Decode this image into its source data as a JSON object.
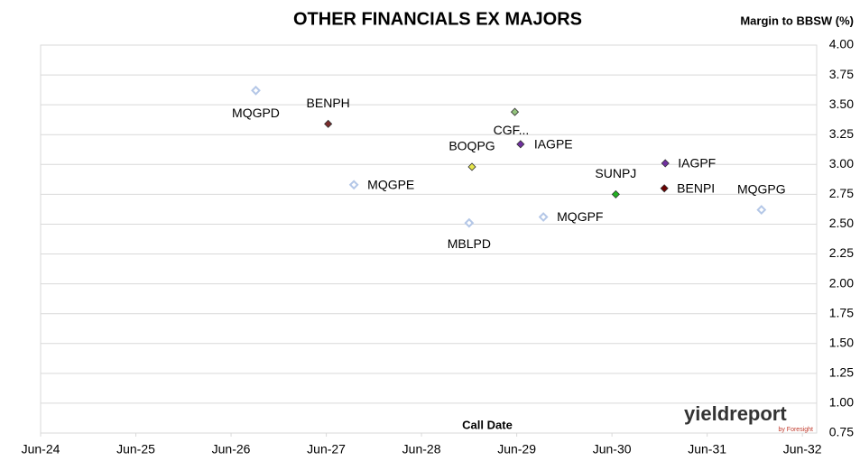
{
  "chart_data": {
    "type": "scatter",
    "title": "OTHER FINANCIALS EX MAJORS",
    "y_label": "Margin to BBSW (%)",
    "x_label": "Call Date",
    "logo": "yieldreport",
    "logo_sub": "by Foresight",
    "xlim": [
      2024.5,
      2032.65
    ],
    "ylim": [
      0.75,
      4.0
    ],
    "xticks": [
      {
        "value": 2024.5,
        "label": "Jun-24"
      },
      {
        "value": 2025.5,
        "label": "Jun-25"
      },
      {
        "value": 2026.5,
        "label": "Jun-26"
      },
      {
        "value": 2027.5,
        "label": "Jun-27"
      },
      {
        "value": 2028.5,
        "label": "Jun-28"
      },
      {
        "value": 2029.5,
        "label": "Jun-29"
      },
      {
        "value": 2030.5,
        "label": "Jun-30"
      },
      {
        "value": 2031.5,
        "label": "Jun-31"
      },
      {
        "value": 2032.5,
        "label": "Jun-32"
      }
    ],
    "yticks": [
      {
        "value": 0.75,
        "label": "0.75"
      },
      {
        "value": 1.0,
        "label": "1.00"
      },
      {
        "value": 1.25,
        "label": "1.25"
      },
      {
        "value": 1.5,
        "label": "1.50"
      },
      {
        "value": 1.75,
        "label": "1.75"
      },
      {
        "value": 2.0,
        "label": "2.00"
      },
      {
        "value": 2.25,
        "label": "2.25"
      },
      {
        "value": 2.5,
        "label": "2.50"
      },
      {
        "value": 2.75,
        "label": "2.75"
      },
      {
        "value": 3.0,
        "label": "3.00"
      },
      {
        "value": 3.25,
        "label": "3.25"
      },
      {
        "value": 3.5,
        "label": "3.50"
      },
      {
        "value": 3.75,
        "label": "3.75"
      },
      {
        "value": 4.0,
        "label": "4.00"
      }
    ],
    "grid": true,
    "series": [
      {
        "name": "MQGPD",
        "color": "#b4c7e7",
        "hollow": true,
        "x": [
          2026.76
        ],
        "values": [
          3.62
        ]
      },
      {
        "name": "BENPH",
        "color": "#7b2c2c",
        "hollow": false,
        "x": [
          2027.52
        ],
        "values": [
          3.34
        ]
      },
      {
        "name": "CGF...",
        "color": "#93c47d",
        "hollow": false,
        "x": [
          2029.48
        ],
        "values": [
          3.44
        ]
      },
      {
        "name": "IAGPE",
        "color": "#7030a0",
        "hollow": false,
        "x": [
          2029.54
        ],
        "values": [
          3.17
        ]
      },
      {
        "name": "BOQPG",
        "color": "#e6e64c",
        "hollow": false,
        "x": [
          2029.03
        ],
        "values": [
          2.98
        ]
      },
      {
        "name": "MQGPE",
        "color": "#b4c7e7",
        "hollow": true,
        "x": [
          2027.79
        ],
        "values": [
          2.83
        ]
      },
      {
        "name": "IAGPF",
        "color": "#7030a0",
        "hollow": false,
        "x": [
          2031.06
        ],
        "values": [
          3.01
        ]
      },
      {
        "name": "BENPI",
        "color": "#6b0000",
        "hollow": false,
        "x": [
          2031.05
        ],
        "values": [
          2.8
        ]
      },
      {
        "name": "SUNPJ",
        "color": "#22b022",
        "hollow": false,
        "x": [
          2030.54
        ],
        "values": [
          2.75
        ]
      },
      {
        "name": "MQGPG",
        "color": "#b4c7e7",
        "hollow": true,
        "x": [
          2032.07
        ],
        "values": [
          2.62
        ]
      },
      {
        "name": "MQGPF",
        "color": "#b4c7e7",
        "hollow": true,
        "x": [
          2029.78
        ],
        "values": [
          2.56
        ]
      },
      {
        "name": "MBLPD",
        "color": "#b4c7e7",
        "hollow": true,
        "x": [
          2029.0
        ],
        "values": [
          2.51
        ]
      }
    ]
  }
}
